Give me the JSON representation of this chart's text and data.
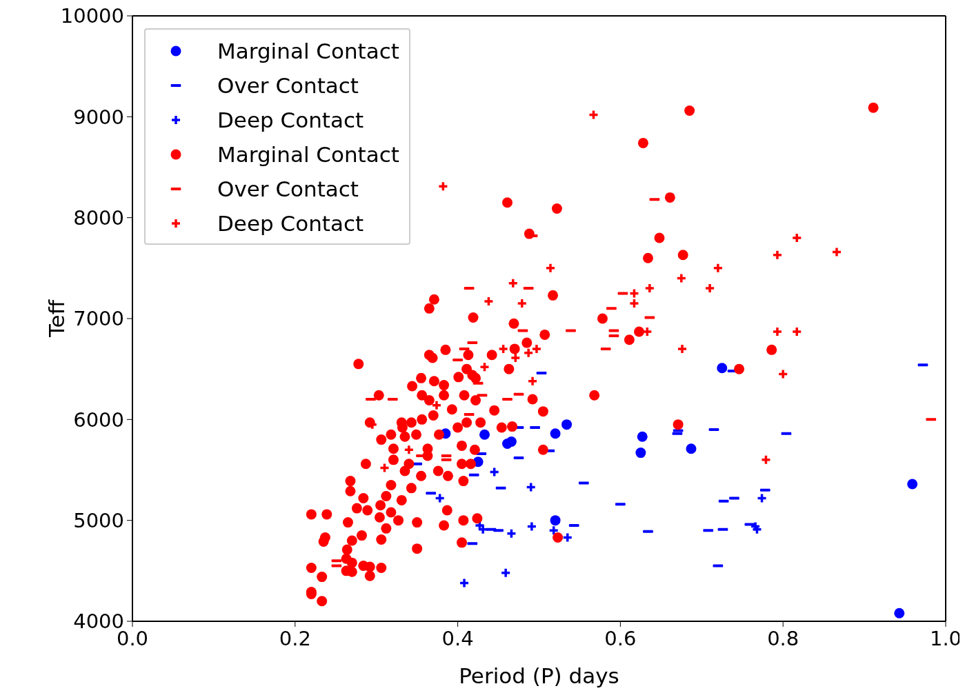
{
  "chart_data": {
    "type": "scatter",
    "xlabel": "Period (P) days",
    "ylabel": "Teff",
    "xlim": [
      0,
      1
    ],
    "ylim": [
      4000,
      10000
    ],
    "xticks": [
      {
        "value": 0,
        "label": "0.0"
      },
      {
        "value": 0.2,
        "label": "0.2"
      },
      {
        "value": 0.4,
        "label": "0.4"
      },
      {
        "value": 0.6,
        "label": "0.6"
      },
      {
        "value": 0.8,
        "label": "0.8"
      },
      {
        "value": 1,
        "label": "1.0"
      }
    ],
    "yticks": [
      4000,
      5000,
      6000,
      7000,
      8000,
      9000,
      10000
    ],
    "grid": false,
    "legend": "top left",
    "series": [
      {
        "name": "Marginal Contact",
        "color": "#0000ff",
        "marker": "circle",
        "x": [
          0.725,
          0.959,
          0.943,
          0.534,
          0.52,
          0.627,
          0.625,
          0.687,
          0.466,
          0.461,
          0.433,
          0.425,
          0.52,
          0.385
        ],
        "values": [
          6510,
          5360,
          4080,
          5950,
          5860,
          5830,
          5670,
          5710,
          5780,
          5760,
          5850,
          5580,
          5000,
          5860
        ]
      },
      {
        "name": "Over Contact",
        "color": "#0000ff",
        "x": [
          0.972,
          0.804,
          0.715,
          0.671,
          0.738,
          0.67,
          0.778,
          0.74,
          0.727,
          0.726,
          0.708,
          0.759,
          0.72,
          0.634,
          0.6,
          0.555,
          0.495,
          0.503,
          0.475,
          0.475,
          0.453,
          0.543,
          0.441,
          0.45,
          0.513,
          0.429,
          0.42,
          0.367,
          0.418,
          0.35
        ],
        "values": [
          6540,
          5860,
          5900,
          5890,
          6480,
          5860,
          5300,
          5220,
          5190,
          4910,
          4900,
          4960,
          4550,
          4890,
          5160,
          5370,
          5920,
          6460,
          5920,
          5620,
          5320,
          4950,
          4910,
          4900,
          5690,
          5660,
          5450,
          5270,
          4770,
          5560
        ]
      },
      {
        "name": "Deep Contact",
        "color": "#0000ff",
        "marker": "cross",
        "x": [
          0.408,
          0.459,
          0.378,
          0.445,
          0.49,
          0.491,
          0.466,
          0.427,
          0.431,
          0.535,
          0.518,
          0.774,
          0.766,
          0.768
        ],
        "values": [
          4380,
          4480,
          5220,
          5480,
          5330,
          4940,
          4870,
          4950,
          4910,
          4830,
          4900,
          5220,
          4940,
          4910
        ]
      },
      {
        "name": "Marginal Contact",
        "color": "#ff0000",
        "marker": "circle",
        "x": [
          0.911,
          0.685,
          0.628,
          0.661,
          0.461,
          0.522,
          0.488,
          0.648,
          0.634,
          0.677,
          0.371,
          0.365,
          0.517,
          0.419,
          0.578,
          0.469,
          0.611,
          0.623,
          0.507,
          0.786,
          0.746,
          0.671,
          0.568,
          0.523,
          0.505,
          0.492,
          0.505,
          0.278,
          0.303,
          0.292,
          0.22,
          0.239,
          0.22,
          0.22,
          0.22,
          0.233,
          0.233,
          0.235,
          0.237,
          0.265,
          0.268,
          0.268,
          0.287,
          0.276,
          0.289,
          0.284,
          0.304,
          0.305,
          0.312,
          0.318,
          0.327,
          0.331,
          0.312,
          0.318,
          0.321,
          0.321,
          0.335,
          0.343,
          0.34,
          0.355,
          0.363,
          0.376,
          0.388,
          0.405,
          0.405,
          0.416,
          0.421,
          0.407,
          0.387,
          0.383,
          0.407,
          0.424,
          0.405,
          0.35,
          0.35,
          0.306,
          0.27,
          0.282,
          0.264,
          0.263,
          0.27,
          0.263,
          0.27,
          0.284,
          0.292,
          0.306,
          0.292,
          0.365,
          0.369,
          0.385,
          0.413,
          0.442,
          0.411,
          0.401,
          0.418,
          0.422,
          0.355,
          0.344,
          0.371,
          0.383,
          0.356,
          0.365,
          0.383,
          0.408,
          0.422,
          0.393,
          0.445,
          0.331,
          0.343,
          0.356,
          0.37,
          0.332,
          0.318,
          0.306,
          0.335,
          0.349,
          0.377,
          0.4,
          0.411,
          0.428,
          0.454,
          0.363,
          0.485,
          0.47,
          0.463,
          0.467
        ],
        "values": [
          9090,
          9060,
          8740,
          8200,
          8150,
          8090,
          7840,
          7800,
          7600,
          7630,
          7190,
          7100,
          7230,
          7010,
          7000,
          6950,
          6790,
          6870,
          6840,
          6690,
          6500,
          5950,
          6240,
          4830,
          5700,
          6200,
          6080,
          6550,
          6240,
          5970,
          5060,
          5060,
          4530,
          4290,
          4270,
          4440,
          4200,
          4790,
          4830,
          4980,
          5390,
          5290,
          5560,
          5120,
          5100,
          5220,
          5030,
          5150,
          4920,
          5080,
          5000,
          5200,
          5240,
          5350,
          5600,
          5710,
          5490,
          5320,
          5560,
          5440,
          5640,
          5490,
          5440,
          5740,
          5560,
          5560,
          5700,
          5390,
          5100,
          4950,
          5000,
          5020,
          4780,
          4980,
          4720,
          4810,
          4800,
          4850,
          4710,
          4620,
          4580,
          4500,
          4490,
          4550,
          4540,
          4530,
          4450,
          6640,
          6610,
          6690,
          6640,
          6640,
          6500,
          6420,
          6440,
          6410,
          6410,
          6330,
          6380,
          6340,
          6240,
          6190,
          6240,
          6240,
          6190,
          6100,
          6090,
          5970,
          5970,
          6000,
          6040,
          5920,
          5850,
          5800,
          5830,
          5850,
          5850,
          5920,
          5970,
          5970,
          5920,
          5710,
          6760,
          6700,
          6500,
          5930
        ]
      },
      {
        "name": "Over Contact",
        "color": "#ff0000",
        "x": [
          0.642,
          0.492,
          0.414,
          0.487,
          0.603,
          0.589,
          0.636,
          0.539,
          0.592,
          0.582,
          0.592,
          0.418,
          0.48,
          0.408,
          0.4,
          0.293,
          0.32,
          0.425,
          0.43,
          0.414,
          0.461,
          0.475,
          0.982,
          0.251,
          0.251,
          0.386,
          0.386,
          0.355
        ],
        "values": [
          8180,
          7820,
          7300,
          7300,
          7250,
          7100,
          7010,
          6880,
          6880,
          6700,
          6830,
          6760,
          6880,
          6700,
          6590,
          6200,
          6200,
          6360,
          6240,
          6050,
          6200,
          6250,
          6000,
          4600,
          4550,
          5640,
          5600,
          5640
        ]
      },
      {
        "name": "Deep Contact",
        "color": "#ff0000",
        "marker": "cross",
        "x": [
          0.567,
          0.382,
          0.817,
          0.793,
          0.866,
          0.514,
          0.72,
          0.468,
          0.438,
          0.479,
          0.636,
          0.675,
          0.71,
          0.617,
          0.617,
          0.633,
          0.793,
          0.817,
          0.676,
          0.8,
          0.779,
          0.497,
          0.487,
          0.471,
          0.456,
          0.492,
          0.374,
          0.295,
          0.31,
          0.34,
          0.433
        ],
        "values": [
          9020,
          8310,
          7800,
          7630,
          7660,
          7500,
          7500,
          7350,
          7170,
          7150,
          7300,
          7400,
          7300,
          7250,
          7150,
          6870,
          6870,
          6870,
          6700,
          6450,
          5600,
          6700,
          6660,
          6610,
          6700,
          6380,
          6140,
          5950,
          5520,
          5700,
          6520
        ]
      }
    ]
  }
}
